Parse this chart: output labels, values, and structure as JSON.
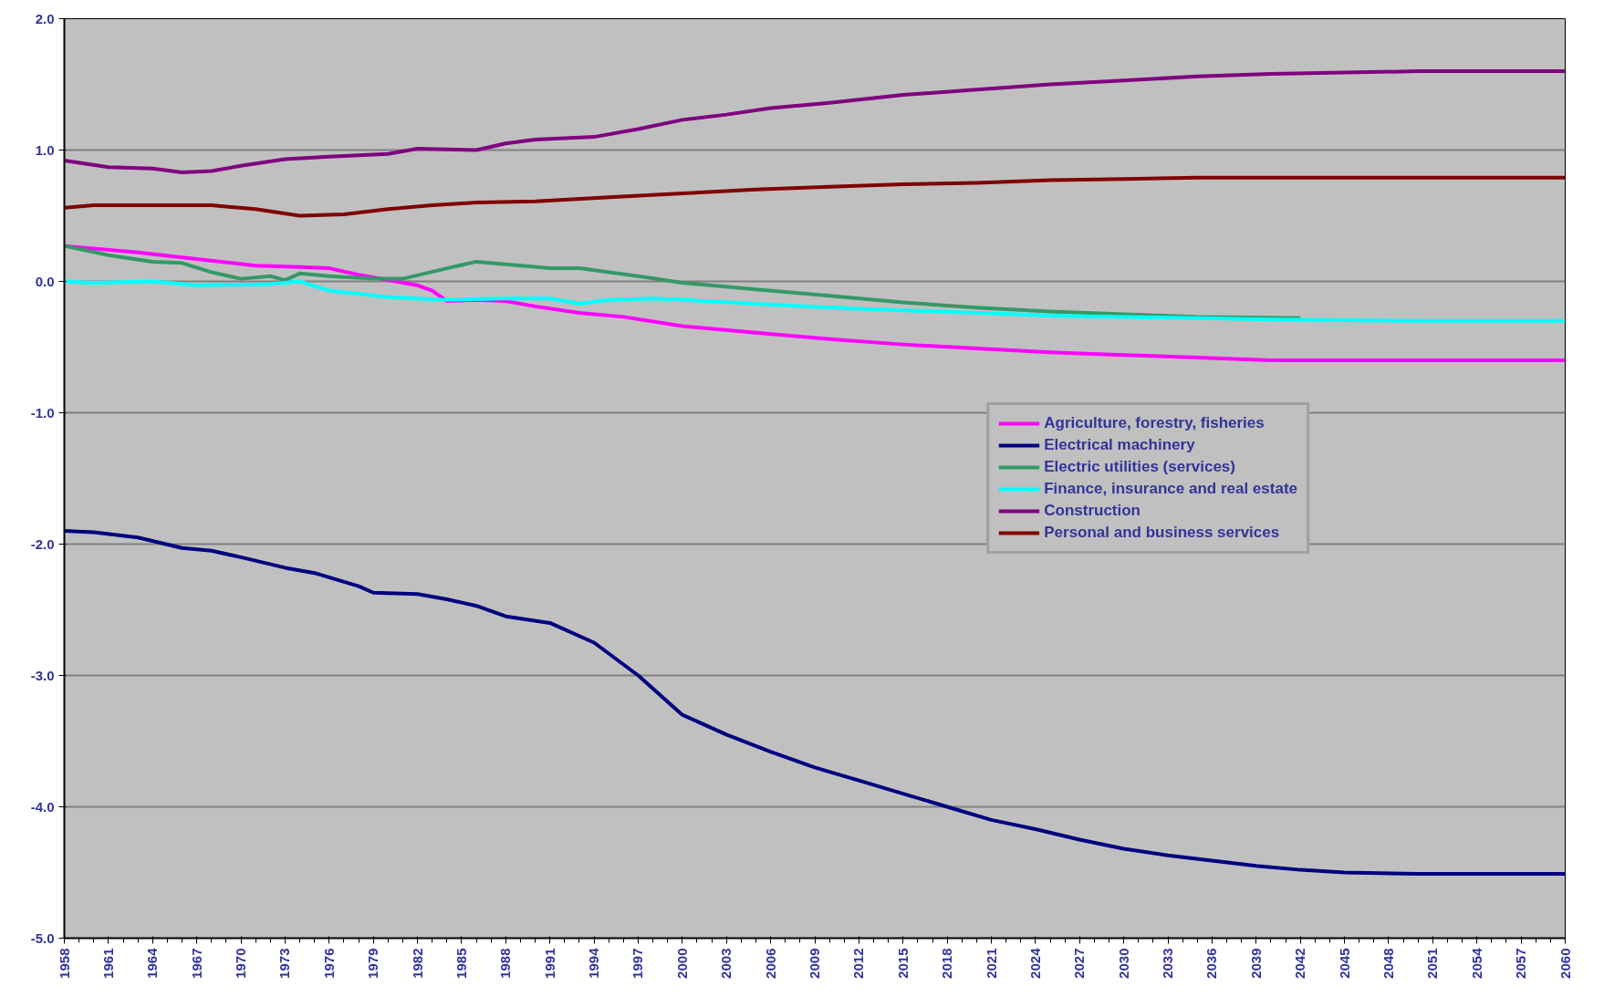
{
  "chart_data": {
    "type": "line",
    "xlim": [
      1958,
      2060
    ],
    "ylim": [
      -5.0,
      2.0
    ],
    "xticks": [
      1958,
      1961,
      1964,
      1967,
      1970,
      1973,
      1976,
      1979,
      1982,
      1985,
      1988,
      1991,
      1994,
      1997,
      2000,
      2003,
      2006,
      2009,
      2012,
      2015,
      2018,
      2021,
      2024,
      2027,
      2030,
      2033,
      2036,
      2039,
      2042,
      2045,
      2048,
      2051,
      2054,
      2057,
      2060
    ],
    "yticks": [
      {
        "value": -5,
        "label": "-5.0"
      },
      {
        "value": -4,
        "label": "-4.0"
      },
      {
        "value": -3,
        "label": "-3.0"
      },
      {
        "value": -2,
        "label": "-2.0"
      },
      {
        "value": -1,
        "label": "-1.0"
      },
      {
        "value": 0,
        "label": "0.0"
      },
      {
        "value": 1,
        "label": "1.0"
      },
      {
        "value": 2,
        "label": "2.0"
      }
    ],
    "grid": "y",
    "legend": "right",
    "marker": "none",
    "line_style": "solid",
    "series": [
      {
        "name": "Agriculture, forestry, fisheries",
        "color": "#ff00ff",
        "x": [
          1958,
          1963,
          1967,
          1971,
          1974,
          1976,
          1978,
          1980,
          1982,
          1983,
          1984,
          1986,
          1988,
          1990,
          1993,
          1996,
          2000,
          2005,
          2010,
          2015,
          2020,
          2025,
          2030,
          2035,
          2040,
          2060
        ],
        "values": [
          0.27,
          0.22,
          0.17,
          0.12,
          0.11,
          0.1,
          0.05,
          0.01,
          -0.03,
          -0.07,
          -0.15,
          -0.14,
          -0.15,
          -0.19,
          -0.24,
          -0.27,
          -0.34,
          -0.39,
          -0.44,
          -0.48,
          -0.51,
          -0.54,
          -0.56,
          -0.58,
          -0.6,
          -0.6
        ]
      },
      {
        "name": "Electrical machinery",
        "color": "#000080",
        "x": [
          1958,
          1960,
          1963,
          1966,
          1968,
          1970,
          1973,
          1975,
          1978,
          1979,
          1982,
          1984,
          1986,
          1988,
          1991,
          1994,
          1997,
          2000,
          2003,
          2006,
          2009,
          2012,
          2015,
          2018,
          2021,
          2024,
          2027,
          2030,
          2033,
          2036,
          2039,
          2042,
          2045,
          2050,
          2060
        ],
        "values": [
          -1.9,
          -1.91,
          -1.95,
          -2.03,
          -2.05,
          -2.1,
          -2.18,
          -2.22,
          -2.32,
          -2.37,
          -2.38,
          -2.42,
          -2.47,
          -2.55,
          -2.6,
          -2.75,
          -3.0,
          -3.3,
          -3.45,
          -3.58,
          -3.7,
          -3.8,
          -3.9,
          -4.0,
          -4.1,
          -4.17,
          -4.25,
          -4.32,
          -4.37,
          -4.41,
          -4.45,
          -4.48,
          -4.5,
          -4.51,
          -4.51
        ]
      },
      {
        "name": "Electric utilities (services)",
        "color": "#339966",
        "x": [
          1958,
          1961,
          1964,
          1966,
          1968,
          1970,
          1972,
          1973,
          1974,
          1976,
          1979,
          1981,
          1984,
          1986,
          1988,
          1991,
          1993,
          1997,
          2000,
          2005,
          2010,
          2015,
          2020,
          2025,
          2030,
          2035,
          2042
        ],
        "values": [
          0.27,
          0.2,
          0.15,
          0.14,
          0.07,
          0.02,
          0.04,
          0.01,
          0.06,
          0.04,
          0.02,
          0.02,
          0.1,
          0.15,
          0.13,
          0.1,
          0.1,
          0.04,
          -0.01,
          -0.06,
          -0.11,
          -0.16,
          -0.2,
          -0.23,
          -0.25,
          -0.27,
          -0.28
        ]
      },
      {
        "name": "Finance, insurance and real estate",
        "color": "#00ffff",
        "x": [
          1958,
          1960,
          1964,
          1967,
          1972,
          1974,
          1976,
          1980,
          1984,
          1988,
          1991,
          1993,
          1995,
          1998,
          2000,
          2005,
          2010,
          2015,
          2020,
          2025,
          2030,
          2035,
          2040,
          2050,
          2060
        ],
        "values": [
          0.0,
          -0.01,
          0.0,
          -0.03,
          -0.02,
          0.0,
          -0.07,
          -0.12,
          -0.14,
          -0.13,
          -0.13,
          -0.17,
          -0.14,
          -0.13,
          -0.14,
          -0.17,
          -0.2,
          -0.22,
          -0.24,
          -0.26,
          -0.27,
          -0.28,
          -0.29,
          -0.3,
          -0.3
        ]
      },
      {
        "name": "Construction",
        "color": "#800080",
        "x": [
          1958,
          1961,
          1964,
          1966,
          1968,
          1970,
          1973,
          1976,
          1980,
          1982,
          1986,
          1988,
          1990,
          1992,
          1994,
          1997,
          2000,
          2003,
          2006,
          2010,
          2015,
          2020,
          2025,
          2030,
          2035,
          2040,
          2045,
          2050,
          2060
        ],
        "values": [
          0.92,
          0.87,
          0.86,
          0.83,
          0.84,
          0.88,
          0.93,
          0.95,
          0.97,
          1.01,
          1.0,
          1.05,
          1.08,
          1.09,
          1.1,
          1.16,
          1.23,
          1.27,
          1.32,
          1.36,
          1.42,
          1.46,
          1.5,
          1.53,
          1.56,
          1.58,
          1.59,
          1.6,
          1.6
        ]
      },
      {
        "name": "Personal and business services",
        "color": "#800000",
        "x": [
          1958,
          1960,
          1968,
          1971,
          1974,
          1977,
          1980,
          1983,
          1986,
          1990,
          1995,
          2000,
          2005,
          2010,
          2015,
          2020,
          2025,
          2030,
          2035,
          2060
        ],
        "values": [
          0.56,
          0.58,
          0.58,
          0.55,
          0.5,
          0.51,
          0.55,
          0.58,
          0.6,
          0.61,
          0.64,
          0.67,
          0.7,
          0.72,
          0.74,
          0.75,
          0.77,
          0.78,
          0.79,
          0.79
        ]
      }
    ]
  }
}
